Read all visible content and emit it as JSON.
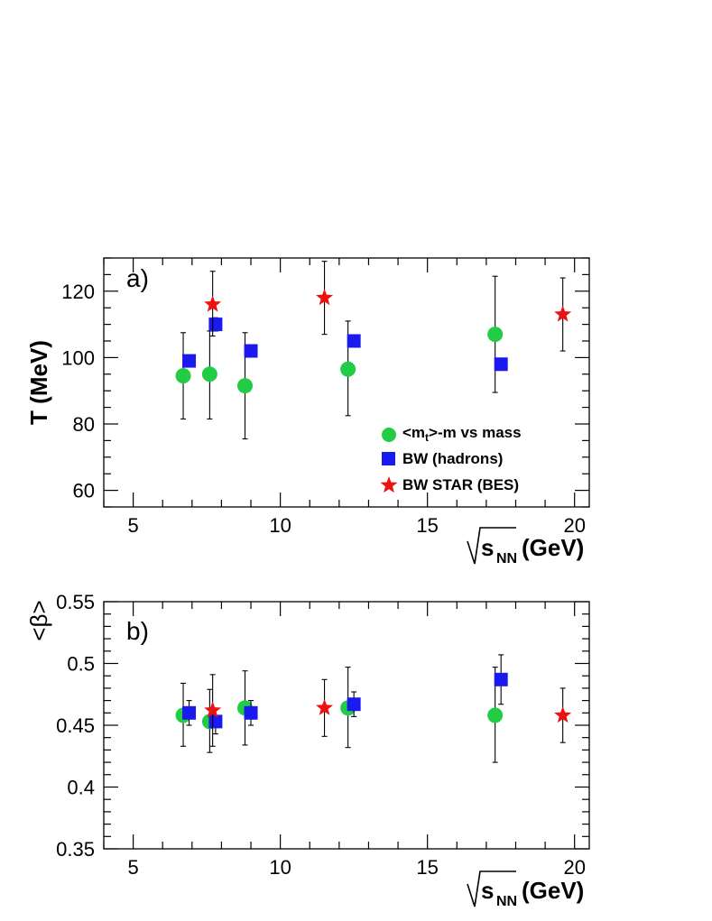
{
  "chart_data": [
    {
      "type": "scatter",
      "panel_label": "a)",
      "ylabel": "T (MeV)",
      "xlabel_main": "s",
      "xlabel_sub": "NN",
      "xlabel_unit": "(GeV)",
      "xlim": [
        4,
        20.5
      ],
      "ylim": [
        55,
        130
      ],
      "xticks": [
        5,
        10,
        15,
        20
      ],
      "yticks": [
        60,
        80,
        100,
        120
      ],
      "legend": {
        "position": "bottom-right",
        "entries": [
          {
            "series": "mt_mass",
            "label_main": "<m",
            "label_sub": "t",
            "label_rest": ">-m vs mass"
          },
          {
            "series": "bw_hadrons",
            "label": "BW (hadrons)"
          },
          {
            "series": "bw_star",
            "label": "BW STAR (BES)"
          }
        ]
      },
      "series": [
        {
          "id": "mt_mass",
          "name": "<mt>-m vs mass",
          "marker": "circle",
          "color": "#22cc44",
          "points": [
            {
              "x": 6.7,
              "y": 94.5,
              "lo": 81.5,
              "hi": 107.5
            },
            {
              "x": 7.6,
              "y": 95,
              "lo": 81.5,
              "hi": 108
            },
            {
              "x": 8.8,
              "y": 91.5,
              "lo": 75.5,
              "hi": 107.5
            },
            {
              "x": 12.3,
              "y": 96.5,
              "lo": 82.5,
              "hi": 111
            },
            {
              "x": 17.3,
              "y": 107,
              "lo": 89.5,
              "hi": 124.5
            }
          ]
        },
        {
          "id": "bw_hadrons",
          "name": "BW (hadrons)",
          "marker": "square",
          "color": "#1a1aee",
          "points": [
            {
              "x": 6.9,
              "y": 99,
              "lo": 98,
              "hi": 100
            },
            {
              "x": 7.8,
              "y": 110,
              "lo": 108,
              "hi": 112
            },
            {
              "x": 9.0,
              "y": 102,
              "lo": 100.5,
              "hi": 103.5
            },
            {
              "x": 12.5,
              "y": 105,
              "lo": 103.5,
              "hi": 106.5
            },
            {
              "x": 17.5,
              "y": 98,
              "lo": 96.5,
              "hi": 99.5
            }
          ]
        },
        {
          "id": "bw_star",
          "name": "BW STAR (BES)",
          "marker": "star",
          "color": "#ee1111",
          "points": [
            {
              "x": 7.7,
              "y": 116,
              "lo": 106.5,
              "hi": 126
            },
            {
              "x": 11.5,
              "y": 118,
              "lo": 107,
              "hi": 129
            },
            {
              "x": 19.6,
              "y": 113,
              "lo": 102,
              "hi": 124
            }
          ]
        }
      ]
    },
    {
      "type": "scatter",
      "panel_label": "b)",
      "ylabel": "<β>",
      "xlabel_main": "s",
      "xlabel_sub": "NN",
      "xlabel_unit": "(GeV)",
      "xlim": [
        4,
        20.5
      ],
      "ylim": [
        0.35,
        0.55
      ],
      "xticks": [
        5,
        10,
        15,
        20
      ],
      "yticks": [
        0.35,
        0.4,
        0.45,
        0.5,
        0.55
      ],
      "ytick_labels": [
        "0.35",
        "0.4",
        "0.45",
        "0.5",
        "0.55"
      ],
      "series": [
        {
          "id": "mt_mass",
          "name": "<mt>-m vs mass",
          "marker": "circle",
          "color": "#22cc44",
          "points": [
            {
              "x": 6.7,
              "y": 0.458,
              "lo": 0.433,
              "hi": 0.484
            },
            {
              "x": 7.6,
              "y": 0.453,
              "lo": 0.428,
              "hi": 0.479
            },
            {
              "x": 8.8,
              "y": 0.464,
              "lo": 0.434,
              "hi": 0.494
            },
            {
              "x": 12.3,
              "y": 0.464,
              "lo": 0.432,
              "hi": 0.497
            },
            {
              "x": 17.3,
              "y": 0.458,
              "lo": 0.42,
              "hi": 0.497
            }
          ]
        },
        {
          "id": "bw_hadrons",
          "name": "BW (hadrons)",
          "marker": "square",
          "color": "#1a1aee",
          "points": [
            {
              "x": 6.9,
              "y": 0.46,
              "lo": 0.45,
              "hi": 0.47
            },
            {
              "x": 7.8,
              "y": 0.453,
              "lo": 0.443,
              "hi": 0.463
            },
            {
              "x": 9.0,
              "y": 0.46,
              "lo": 0.45,
              "hi": 0.47
            },
            {
              "x": 12.5,
              "y": 0.467,
              "lo": 0.457,
              "hi": 0.477
            },
            {
              "x": 17.5,
              "y": 0.487,
              "lo": 0.467,
              "hi": 0.507
            }
          ]
        },
        {
          "id": "bw_star",
          "name": "BW STAR (BES)",
          "marker": "star",
          "color": "#ee1111",
          "points": [
            {
              "x": 7.7,
              "y": 0.462,
              "lo": 0.433,
              "hi": 0.491
            },
            {
              "x": 11.5,
              "y": 0.464,
              "lo": 0.441,
              "hi": 0.487
            },
            {
              "x": 19.6,
              "y": 0.458,
              "lo": 0.436,
              "hi": 0.48
            }
          ]
        }
      ]
    }
  ]
}
